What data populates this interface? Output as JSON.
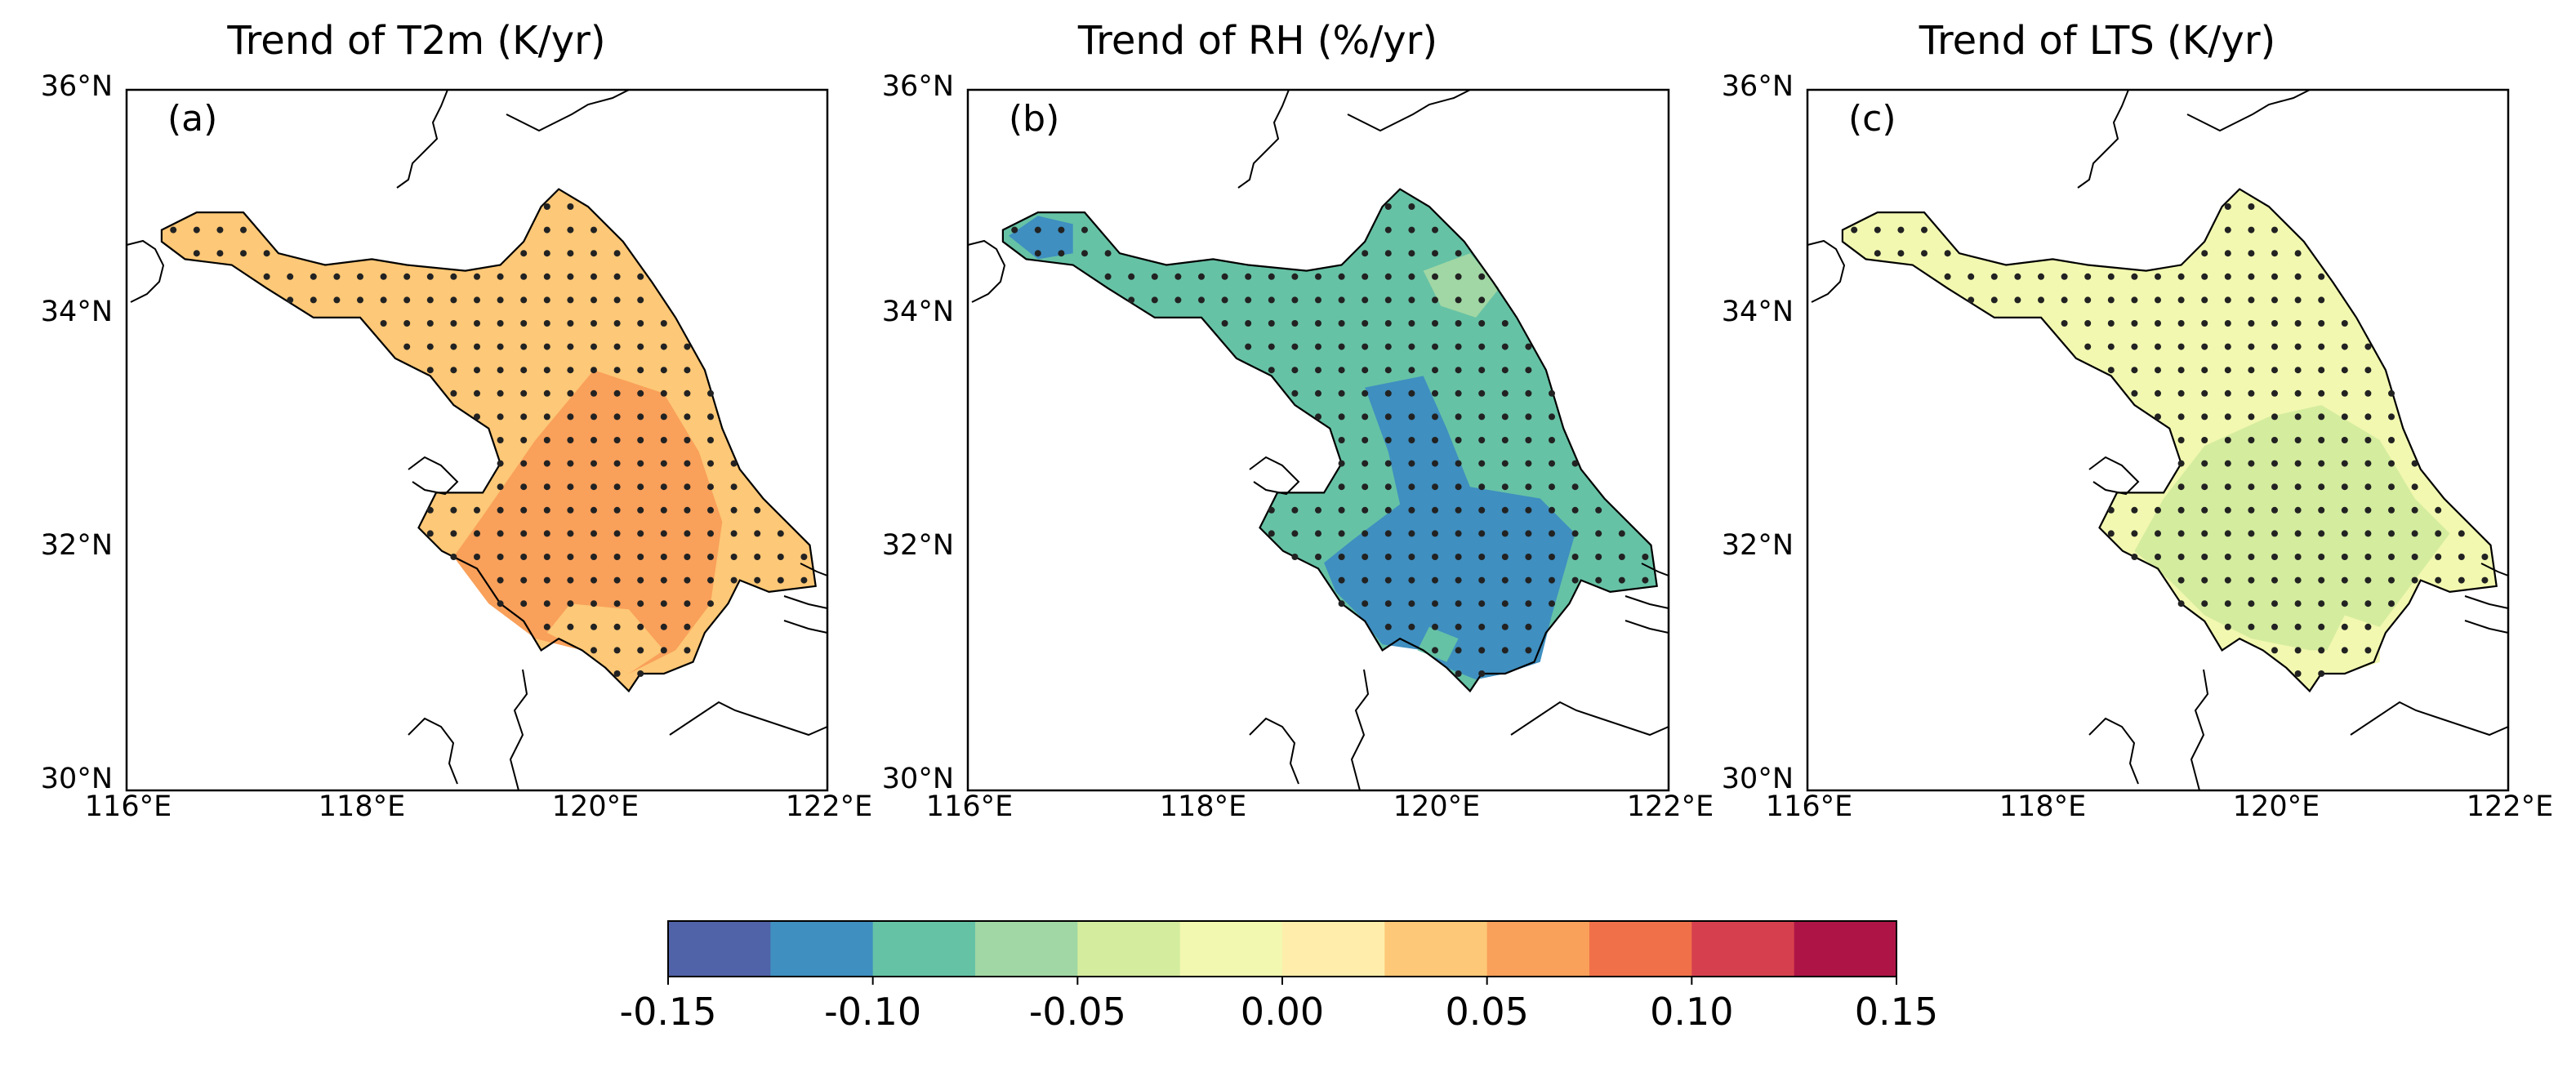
{
  "panels": [
    {
      "title": "Trend of T2m (K/yr)",
      "letter": "(a)",
      "regions": [
        {
          "polygon": [
            [
              116.3,
              34.8
            ],
            [
              116.6,
              34.95
            ],
            [
              117.0,
              34.95
            ],
            [
              117.3,
              34.6
            ],
            [
              117.7,
              34.5
            ],
            [
              118.1,
              34.55
            ],
            [
              118.4,
              34.5
            ],
            [
              118.9,
              34.45
            ],
            [
              119.2,
              34.5
            ],
            [
              119.4,
              34.7
            ],
            [
              119.55,
              35.0
            ],
            [
              119.7,
              35.15
            ],
            [
              119.95,
              35.0
            ],
            [
              120.25,
              34.7
            ],
            [
              120.5,
              34.35
            ],
            [
              120.7,
              34.05
            ],
            [
              120.95,
              33.6
            ],
            [
              121.1,
              33.1
            ],
            [
              121.25,
              32.75
            ],
            [
              121.45,
              32.5
            ],
            [
              121.85,
              32.1
            ],
            [
              121.9,
              31.75
            ],
            [
              121.5,
              31.7
            ],
            [
              121.25,
              31.8
            ],
            [
              121.15,
              31.6
            ],
            [
              120.95,
              31.35
            ],
            [
              120.85,
              31.1
            ],
            [
              120.6,
              31.0
            ],
            [
              120.4,
              31.0
            ],
            [
              120.3,
              30.85
            ],
            [
              120.1,
              31.05
            ],
            [
              119.9,
              31.2
            ],
            [
              119.7,
              31.3
            ],
            [
              119.55,
              31.2
            ],
            [
              119.4,
              31.45
            ],
            [
              119.2,
              31.6
            ],
            [
              119.0,
              31.9
            ],
            [
              118.7,
              32.05
            ],
            [
              118.5,
              32.25
            ],
            [
              118.65,
              32.55
            ],
            [
              119.05,
              32.55
            ],
            [
              119.2,
              32.8
            ],
            [
              119.1,
              33.1
            ],
            [
              118.8,
              33.3
            ],
            [
              118.6,
              33.55
            ],
            [
              118.3,
              33.7
            ],
            [
              118.0,
              34.05
            ],
            [
              117.6,
              34.05
            ],
            [
              117.2,
              34.3
            ],
            [
              116.9,
              34.5
            ],
            [
              116.5,
              34.55
            ],
            [
              116.3,
              34.7
            ]
          ],
          "value": 0.04
        },
        {
          "polygon": [
            [
              119.05,
              32.35
            ],
            [
              119.5,
              33.0
            ],
            [
              120.0,
              33.6
            ],
            [
              120.6,
              33.4
            ],
            [
              120.9,
              32.9
            ],
            [
              121.1,
              32.3
            ],
            [
              121.0,
              31.6
            ],
            [
              120.7,
              31.2
            ],
            [
              120.3,
              31.0
            ],
            [
              119.9,
              31.2
            ],
            [
              119.5,
              31.3
            ],
            [
              119.1,
              31.6
            ],
            [
              118.8,
              32.0
            ]
          ],
          "value": 0.06
        },
        {
          "polygon": [
            [
              119.8,
              31.6
            ],
            [
              120.3,
              31.55
            ],
            [
              120.6,
              31.2
            ],
            [
              120.3,
              31.0
            ],
            [
              119.9,
              31.2
            ],
            [
              119.6,
              31.35
            ]
          ],
          "value": 0.04
        }
      ]
    },
    {
      "title": "Trend of RH (%/yr)",
      "letter": "(b)",
      "regions": [
        {
          "polygon": [
            [
              116.3,
              34.8
            ],
            [
              116.6,
              34.95
            ],
            [
              117.0,
              34.95
            ],
            [
              117.3,
              34.6
            ],
            [
              117.7,
              34.5
            ],
            [
              118.1,
              34.55
            ],
            [
              118.4,
              34.5
            ],
            [
              118.9,
              34.45
            ],
            [
              119.2,
              34.5
            ],
            [
              119.4,
              34.7
            ],
            [
              119.55,
              35.0
            ],
            [
              119.7,
              35.15
            ],
            [
              119.95,
              35.0
            ],
            [
              120.25,
              34.7
            ],
            [
              120.5,
              34.35
            ],
            [
              120.7,
              34.05
            ],
            [
              120.95,
              33.6
            ],
            [
              121.1,
              33.1
            ],
            [
              121.25,
              32.75
            ],
            [
              121.45,
              32.5
            ],
            [
              121.85,
              32.1
            ],
            [
              121.9,
              31.75
            ],
            [
              121.5,
              31.7
            ],
            [
              121.25,
              31.8
            ],
            [
              121.15,
              31.6
            ],
            [
              120.95,
              31.35
            ],
            [
              120.85,
              31.1
            ],
            [
              120.6,
              31.0
            ],
            [
              120.4,
              31.0
            ],
            [
              120.3,
              30.85
            ],
            [
              120.1,
              31.05
            ],
            [
              119.9,
              31.2
            ],
            [
              119.7,
              31.3
            ],
            [
              119.55,
              31.2
            ],
            [
              119.4,
              31.45
            ],
            [
              119.2,
              31.6
            ],
            [
              119.0,
              31.9
            ],
            [
              118.7,
              32.05
            ],
            [
              118.5,
              32.25
            ],
            [
              118.65,
              32.55
            ],
            [
              119.05,
              32.55
            ],
            [
              119.2,
              32.8
            ],
            [
              119.1,
              33.1
            ],
            [
              118.8,
              33.3
            ],
            [
              118.6,
              33.55
            ],
            [
              118.3,
              33.7
            ],
            [
              118.0,
              34.05
            ],
            [
              117.6,
              34.05
            ],
            [
              117.2,
              34.3
            ],
            [
              116.9,
              34.5
            ],
            [
              116.5,
              34.55
            ],
            [
              116.3,
              34.7
            ]
          ],
          "value": -0.09
        },
        {
          "polygon": [
            [
              116.35,
              34.75
            ],
            [
              116.6,
              34.92
            ],
            [
              116.9,
              34.85
            ],
            [
              116.9,
              34.6
            ],
            [
              116.6,
              34.55
            ]
          ],
          "value": -0.11
        },
        {
          "polygon": [
            [
              119.9,
              34.45
            ],
            [
              120.3,
              34.6
            ],
            [
              120.55,
              34.3
            ],
            [
              120.35,
              34.05
            ],
            [
              120.05,
              34.15
            ]
          ],
          "value": -0.06
        },
        {
          "polygon": [
            [
              119.4,
              33.45
            ],
            [
              119.9,
              33.55
            ],
            [
              120.1,
              33.1
            ],
            [
              120.3,
              32.6
            ],
            [
              120.9,
              32.5
            ],
            [
              121.2,
              32.2
            ],
            [
              121.0,
              31.5
            ],
            [
              120.9,
              31.1
            ],
            [
              120.6,
              31.0
            ],
            [
              120.35,
              30.95
            ],
            [
              120.1,
              31.05
            ],
            [
              119.9,
              31.2
            ],
            [
              119.55,
              31.25
            ],
            [
              119.35,
              31.5
            ],
            [
              119.15,
              31.7
            ],
            [
              119.05,
              31.95
            ],
            [
              119.3,
              32.15
            ],
            [
              119.7,
              32.45
            ],
            [
              119.6,
              32.9
            ]
          ],
          "value": -0.115
        },
        {
          "polygon": [
            [
              119.95,
              31.4
            ],
            [
              120.2,
              31.3
            ],
            [
              120.1,
              31.1
            ],
            [
              119.85,
              31.2
            ]
          ],
          "value": -0.09
        }
      ]
    },
    {
      "title": "Trend of LTS (K/yr)",
      "letter": "(c)",
      "regions": [
        {
          "polygon": [
            [
              116.3,
              34.8
            ],
            [
              116.6,
              34.95
            ],
            [
              117.0,
              34.95
            ],
            [
              117.3,
              34.6
            ],
            [
              117.7,
              34.5
            ],
            [
              118.1,
              34.55
            ],
            [
              118.4,
              34.5
            ],
            [
              118.9,
              34.45
            ],
            [
              119.2,
              34.5
            ],
            [
              119.4,
              34.7
            ],
            [
              119.55,
              35.0
            ],
            [
              119.7,
              35.15
            ],
            [
              119.95,
              35.0
            ],
            [
              120.25,
              34.7
            ],
            [
              120.5,
              34.35
            ],
            [
              120.7,
              34.05
            ],
            [
              120.95,
              33.6
            ],
            [
              121.1,
              33.1
            ],
            [
              121.25,
              32.75
            ],
            [
              121.45,
              32.5
            ],
            [
              121.85,
              32.1
            ],
            [
              121.9,
              31.75
            ],
            [
              121.5,
              31.7
            ],
            [
              121.25,
              31.8
            ],
            [
              121.15,
              31.6
            ],
            [
              120.95,
              31.35
            ],
            [
              120.85,
              31.1
            ],
            [
              120.6,
              31.0
            ],
            [
              120.4,
              31.0
            ],
            [
              120.3,
              30.85
            ],
            [
              120.1,
              31.05
            ],
            [
              119.9,
              31.2
            ],
            [
              119.7,
              31.3
            ],
            [
              119.55,
              31.2
            ],
            [
              119.4,
              31.45
            ],
            [
              119.2,
              31.6
            ],
            [
              119.0,
              31.9
            ],
            [
              118.7,
              32.05
            ],
            [
              118.5,
              32.25
            ],
            [
              118.65,
              32.55
            ],
            [
              119.05,
              32.55
            ],
            [
              119.2,
              32.8
            ],
            [
              119.1,
              33.1
            ],
            [
              118.8,
              33.3
            ],
            [
              118.6,
              33.55
            ],
            [
              118.3,
              33.7
            ],
            [
              118.0,
              34.05
            ],
            [
              117.6,
              34.05
            ],
            [
              117.2,
              34.3
            ],
            [
              116.9,
              34.5
            ],
            [
              116.5,
              34.55
            ],
            [
              116.3,
              34.7
            ]
          ],
          "value": -0.01
        },
        {
          "polygon": [
            [
              119.05,
              32.5
            ],
            [
              119.4,
              32.95
            ],
            [
              119.95,
              33.2
            ],
            [
              120.4,
              33.3
            ],
            [
              120.9,
              33.0
            ],
            [
              121.2,
              32.5
            ],
            [
              121.5,
              32.2
            ],
            [
              121.2,
              31.8
            ],
            [
              120.9,
              31.4
            ],
            [
              120.6,
              31.2
            ],
            [
              120.3,
              31.2
            ],
            [
              119.8,
              31.3
            ],
            [
              119.4,
              31.5
            ],
            [
              119.1,
              31.8
            ],
            [
              118.8,
              32.05
            ]
          ],
          "value": -0.03
        },
        {
          "polygon": [
            [
              120.6,
              31.5
            ],
            [
              120.9,
              31.4
            ],
            [
              120.9,
              31.1
            ],
            [
              120.6,
              31.0
            ],
            [
              120.4,
              31.1
            ]
          ],
          "value": -0.01
        }
      ]
    }
  ],
  "lat_labels": [
    "36°N",
    "34°N",
    "32°N",
    "30°N"
  ],
  "lon_labels": [
    "116°E",
    "118°E",
    "120°E",
    "122°E"
  ],
  "colorbar": {
    "levels": [
      -0.15,
      -0.125,
      -0.1,
      -0.075,
      -0.05,
      -0.025,
      0.0,
      0.025,
      0.05,
      0.075,
      0.1,
      0.125,
      0.15
    ],
    "colors": [
      "#5062a8",
      "#3f8fc0",
      "#66c2a5",
      "#a1d7a4",
      "#d4ec9e",
      "#f2f8b0",
      "#ffeeab",
      "#fdc877",
      "#f9a05a",
      "#f07049",
      "#d6404e",
      "#ae1546"
    ],
    "tick_labels": [
      "-0.15",
      "-0.10",
      "-0.05",
      "0.00",
      "0.05",
      "0.10",
      "0.15"
    ]
  },
  "stippling": {
    "lon_start": 116.2,
    "lon_step": 0.2,
    "lat_start": 30.8,
    "lat_step": 0.2
  }
}
